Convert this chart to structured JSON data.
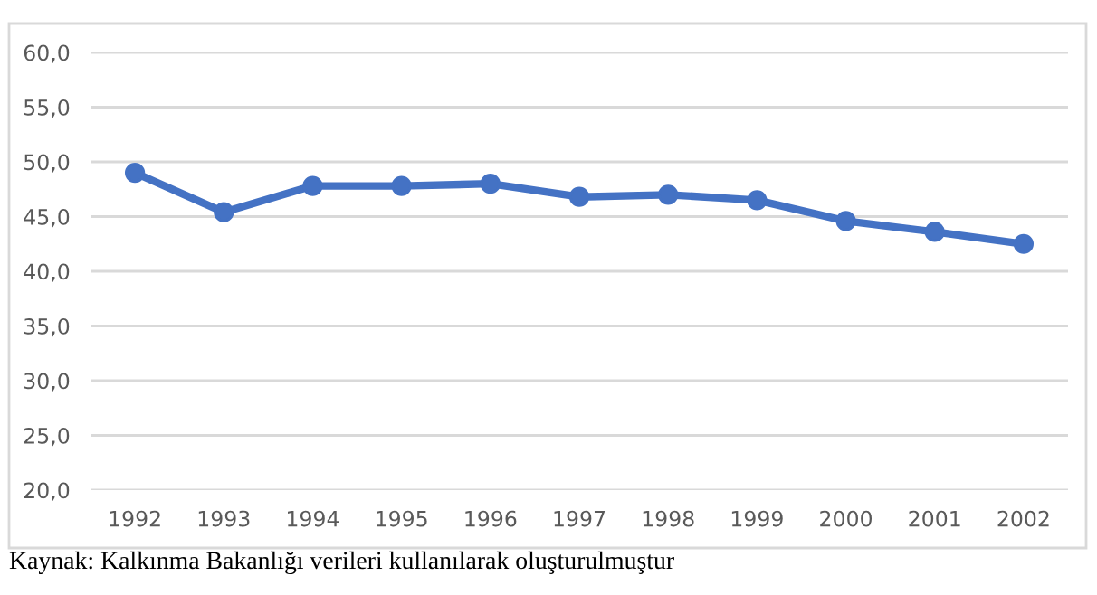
{
  "chart_data": {
    "type": "line",
    "categories": [
      "1992",
      "1993",
      "1994",
      "1995",
      "1996",
      "1997",
      "1998",
      "1999",
      "2000",
      "2001",
      "2002"
    ],
    "series": [
      {
        "color": "#4472c4",
        "values": [
          49.0,
          45.4,
          47.8,
          47.8,
          48.0,
          46.8,
          47.0,
          46.5,
          44.6,
          43.6,
          42.5
        ]
      }
    ],
    "ylim": [
      20,
      60
    ],
    "yticks": [
      {
        "value": 20,
        "label": "20,0"
      },
      {
        "value": 25,
        "label": "25,0"
      },
      {
        "value": 30,
        "label": "30,0"
      },
      {
        "value": 35,
        "label": "35,0"
      },
      {
        "value": 40,
        "label": "40,0"
      },
      {
        "value": 45,
        "label": "45,0"
      },
      {
        "value": 50,
        "label": "50,0"
      },
      {
        "value": 55,
        "label": "55,0"
      },
      {
        "value": 60,
        "label": "60,0"
      }
    ],
    "grid": "y",
    "marker": "circle",
    "line_style": "solid",
    "annotations": [
      "Kaynak: Kalkınma Bakanlığı verileri kullanılarak oluşturulmuştur"
    ]
  }
}
